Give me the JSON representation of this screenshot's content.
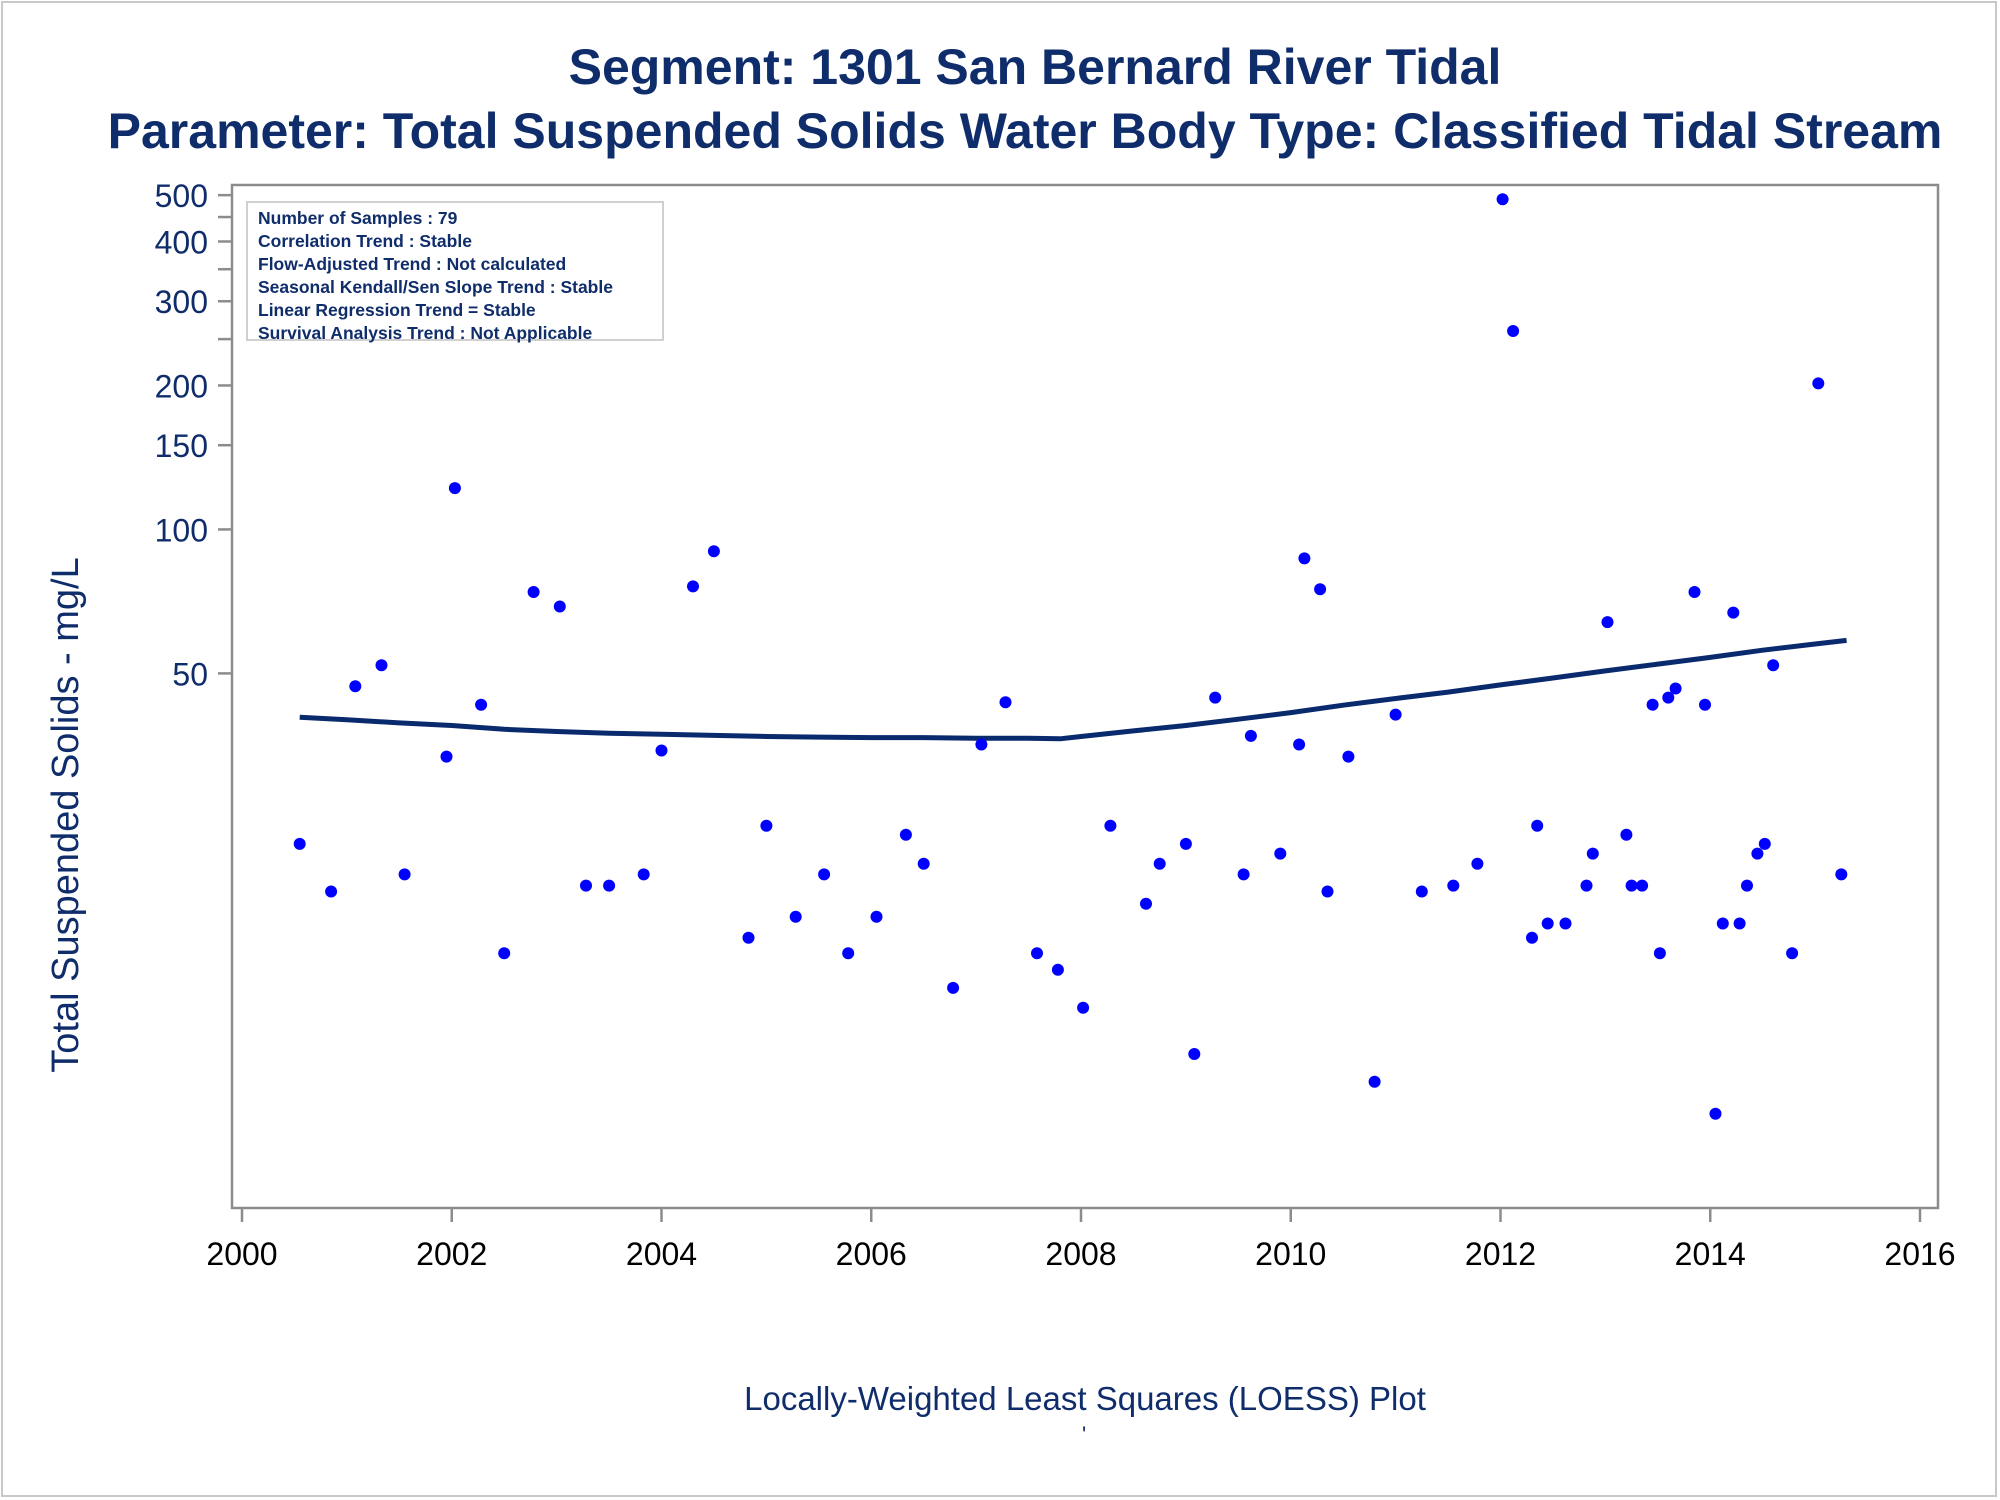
{
  "title": "Segment: 1301  San Bernard River Tidal",
  "subtitle": "Parameter: Total Suspended Solids   Water Body Type: Classified Tidal Stream",
  "footnote": "Locally-Weighted Least Squares (LOESS) Plot",
  "footnote_mark": "'",
  "stats": [
    "Number of Samples : 79",
    "Correlation Trend : Stable",
    "Flow-Adjusted Trend : Not calculated",
    "Seasonal Kendall/Sen Slope Trend : Stable",
    "Linear Regression Trend = Stable",
    "Survival Analysis Trend : Not Applicable"
  ],
  "colors": {
    "text": "#102d6b",
    "points": "#0000ff",
    "loess_line": "#0a2a6e",
    "axis": "#8c8c8c"
  },
  "chart_data": {
    "type": "scatter",
    "xlabel": "",
    "ylabel": "Total Suspended Solids - mg/L",
    "xlim": [
      2000,
      2016
    ],
    "ylim": [
      4,
      520
    ],
    "yscale": "log",
    "xticks": [
      2000,
      2002,
      2004,
      2006,
      2008,
      2010,
      2012,
      2014,
      2016
    ],
    "yticks": [
      50,
      100,
      150,
      200,
      300,
      400,
      500
    ],
    "yminor_ticks": [
      250,
      350,
      450
    ],
    "grid": false,
    "series": [
      {
        "kind": "points",
        "points": [
          [
            2000.55,
            22
          ],
          [
            2000.85,
            17.5
          ],
          [
            2001.08,
            47
          ],
          [
            2001.33,
            52
          ],
          [
            2001.55,
            19
          ],
          [
            2001.95,
            33.5
          ],
          [
            2002.03,
            122
          ],
          [
            2002.28,
            43
          ],
          [
            2002.5,
            13
          ],
          [
            2002.78,
            74
          ],
          [
            2003.03,
            69
          ],
          [
            2003.28,
            18
          ],
          [
            2003.5,
            18
          ],
          [
            2003.83,
            19
          ],
          [
            2004.0,
            34.5
          ],
          [
            2004.3,
            76
          ],
          [
            2004.5,
            90
          ],
          [
            2004.83,
            14
          ],
          [
            2005.0,
            24
          ],
          [
            2005.28,
            15.5
          ],
          [
            2005.55,
            19
          ],
          [
            2005.78,
            13
          ],
          [
            2006.05,
            15.5
          ],
          [
            2006.33,
            23
          ],
          [
            2006.5,
            20
          ],
          [
            2006.78,
            11
          ],
          [
            2007.05,
            35.5
          ],
          [
            2007.28,
            43.5
          ],
          [
            2007.58,
            13
          ],
          [
            2007.78,
            12
          ],
          [
            2008.02,
            10
          ],
          [
            2008.28,
            24
          ],
          [
            2008.62,
            16.5
          ],
          [
            2008.75,
            20
          ],
          [
            2009.0,
            22
          ],
          [
            2009.08,
            8
          ],
          [
            2009.28,
            44.5
          ],
          [
            2009.55,
            19
          ],
          [
            2009.62,
            37
          ],
          [
            2009.9,
            21
          ],
          [
            2010.08,
            35.5
          ],
          [
            2010.13,
            87
          ],
          [
            2010.28,
            75
          ],
          [
            2010.35,
            17.5
          ],
          [
            2010.55,
            33.5
          ],
          [
            2010.8,
            7
          ],
          [
            2011.0,
            41
          ],
          [
            2011.25,
            17.5
          ],
          [
            2011.55,
            18
          ],
          [
            2011.78,
            20
          ],
          [
            2012.02,
            490
          ],
          [
            2012.12,
            260
          ],
          [
            2012.3,
            14
          ],
          [
            2012.35,
            24
          ],
          [
            2012.45,
            15
          ],
          [
            2012.62,
            15
          ],
          [
            2012.82,
            18
          ],
          [
            2012.88,
            21
          ],
          [
            2013.02,
            64
          ],
          [
            2013.2,
            23
          ],
          [
            2013.25,
            18
          ],
          [
            2013.35,
            18
          ],
          [
            2013.45,
            43
          ],
          [
            2013.52,
            13
          ],
          [
            2013.6,
            44.5
          ],
          [
            2013.67,
            46.5
          ],
          [
            2013.85,
            74
          ],
          [
            2013.95,
            43
          ],
          [
            2014.05,
            6
          ],
          [
            2014.12,
            15
          ],
          [
            2014.22,
            67
          ],
          [
            2014.28,
            15
          ],
          [
            2014.35,
            18
          ],
          [
            2014.45,
            21
          ],
          [
            2014.52,
            22
          ],
          [
            2014.6,
            52
          ],
          [
            2014.78,
            13
          ],
          [
            2015.03,
            202
          ],
          [
            2015.25,
            19
          ]
        ]
      },
      {
        "kind": "line",
        "points": [
          [
            2000.55,
            40.5
          ],
          [
            2001.0,
            40.0
          ],
          [
            2001.5,
            39.4
          ],
          [
            2002.0,
            38.9
          ],
          [
            2002.5,
            38.2
          ],
          [
            2003.0,
            37.8
          ],
          [
            2003.5,
            37.5
          ],
          [
            2004.0,
            37.3
          ],
          [
            2004.5,
            37.1
          ],
          [
            2005.0,
            36.9
          ],
          [
            2005.5,
            36.8
          ],
          [
            2006.0,
            36.7
          ],
          [
            2006.5,
            36.7
          ],
          [
            2007.0,
            36.6
          ],
          [
            2007.5,
            36.6
          ],
          [
            2007.8,
            36.5
          ],
          [
            2008.0,
            36.9
          ],
          [
            2008.5,
            37.9
          ],
          [
            2009.0,
            38.9
          ],
          [
            2009.5,
            40.1
          ],
          [
            2010.0,
            41.4
          ],
          [
            2010.5,
            42.9
          ],
          [
            2011.0,
            44.3
          ],
          [
            2011.5,
            45.7
          ],
          [
            2012.0,
            47.3
          ],
          [
            2012.5,
            48.9
          ],
          [
            2013.0,
            50.6
          ],
          [
            2013.5,
            52.3
          ],
          [
            2014.0,
            54.0
          ],
          [
            2014.5,
            55.9
          ],
          [
            2015.0,
            57.6
          ],
          [
            2015.3,
            58.6
          ]
        ]
      }
    ]
  }
}
